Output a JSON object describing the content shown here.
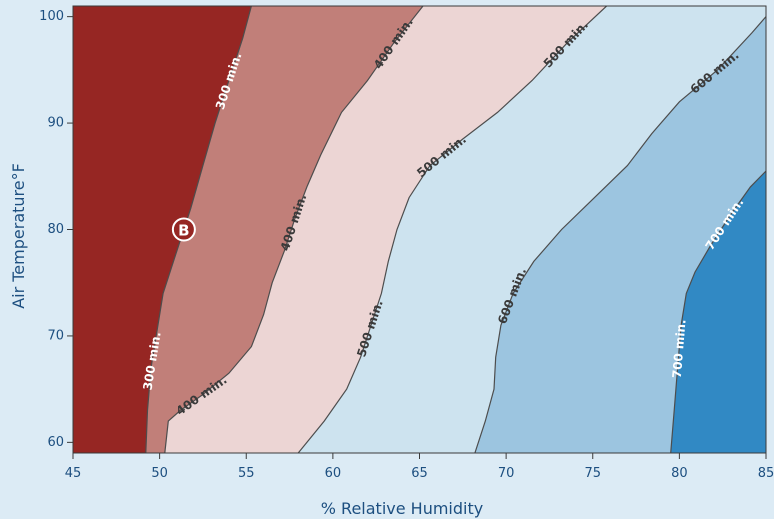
{
  "chart_data": {
    "type": "contour",
    "xlabel": "% Relative Humidity",
    "ylabel": "Air Temperature°F",
    "xlim": [
      45,
      85
    ],
    "ylim": [
      59,
      101
    ],
    "xticks": [
      "45",
      "50",
      "55",
      "60",
      "65",
      "70",
      "75",
      "80",
      "85"
    ],
    "yticks": [
      "60",
      "70",
      "80",
      "90",
      "100"
    ],
    "levels": [
      {
        "label": "300 min.",
        "value": 300,
        "color": "#ffffff",
        "points": [
          [
            49.2,
            59
          ],
          [
            49.3,
            63
          ],
          [
            49.5,
            67
          ],
          [
            49.8,
            70
          ],
          [
            50.2,
            74
          ],
          [
            51.0,
            78
          ],
          [
            51.8,
            82
          ],
          [
            52.5,
            86
          ],
          [
            53.2,
            90
          ],
          [
            54.0,
            94
          ],
          [
            54.8,
            98
          ],
          [
            55.3,
            101
          ]
        ]
      },
      {
        "label": "400 min.",
        "value": 400,
        "color": "#3a3a3a",
        "points": [
          [
            50.3,
            59
          ],
          [
            50.5,
            62
          ],
          [
            51.2,
            63
          ],
          [
            52.5,
            64.5
          ],
          [
            54.0,
            66.5
          ],
          [
            55.3,
            69
          ],
          [
            56.0,
            72
          ],
          [
            56.5,
            75
          ],
          [
            57.2,
            78
          ],
          [
            57.8,
            81
          ],
          [
            58.5,
            84
          ],
          [
            59.3,
            87
          ],
          [
            60.5,
            91
          ],
          [
            62.0,
            94
          ],
          [
            63.5,
            97.5
          ],
          [
            65.2,
            101
          ]
        ]
      },
      {
        "label": "500 min.",
        "value": 500,
        "color": "#3a3a3a",
        "points": [
          [
            58.0,
            59
          ],
          [
            59.5,
            62
          ],
          [
            60.8,
            65
          ],
          [
            61.6,
            68
          ],
          [
            62.2,
            71
          ],
          [
            62.8,
            74
          ],
          [
            63.2,
            77
          ],
          [
            63.7,
            80
          ],
          [
            64.4,
            83
          ],
          [
            65.6,
            86
          ],
          [
            67.5,
            88.5
          ],
          [
            69.5,
            91
          ],
          [
            71.5,
            94
          ],
          [
            73.5,
            97.5
          ],
          [
            75.8,
            101
          ]
        ]
      },
      {
        "label": "600 min.",
        "value": 600,
        "color": "#3a3a3a",
        "points": [
          [
            68.2,
            59
          ],
          [
            68.8,
            62
          ],
          [
            69.3,
            65
          ],
          [
            69.4,
            68
          ],
          [
            69.7,
            71
          ],
          [
            70.4,
            74
          ],
          [
            71.6,
            77
          ],
          [
            73.2,
            80
          ],
          [
            75.1,
            83
          ],
          [
            77.0,
            86
          ],
          [
            78.4,
            89
          ],
          [
            80.0,
            92
          ],
          [
            82.2,
            95
          ],
          [
            84.2,
            98.5
          ],
          [
            85.0,
            100
          ]
        ]
      },
      {
        "label": "700 min.",
        "value": 700,
        "color": "#ffffff",
        "points": [
          [
            79.5,
            59
          ],
          [
            79.7,
            63
          ],
          [
            79.9,
            67
          ],
          [
            80.1,
            71
          ],
          [
            80.4,
            74
          ],
          [
            80.9,
            76
          ],
          [
            81.8,
            78.5
          ],
          [
            83.0,
            81.5
          ],
          [
            84.1,
            84
          ],
          [
            85.0,
            85.5
          ]
        ]
      }
    ],
    "region_colors": [
      "#962623",
      "#c17f79",
      "#ecd5d4",
      "#cde3ef",
      "#9cc5e0",
      "#3189c4"
    ],
    "markers": [
      {
        "label": "B",
        "x": 51.4,
        "y": 80
      }
    ]
  }
}
